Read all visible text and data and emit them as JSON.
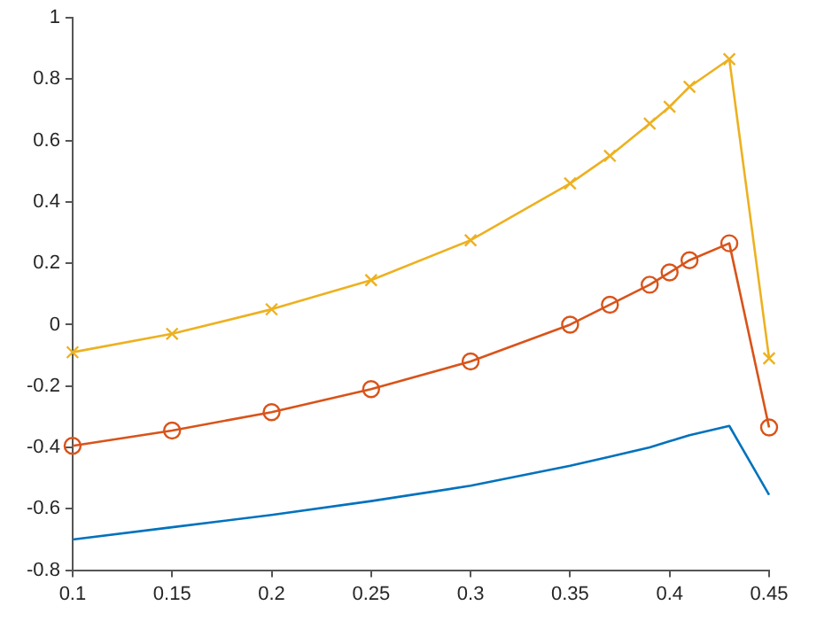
{
  "chart_data": {
    "type": "line",
    "x": [
      0.1,
      0.15,
      0.2,
      0.25,
      0.3,
      0.35,
      0.37,
      0.39,
      0.4,
      0.41,
      0.43,
      0.45
    ],
    "series": [
      {
        "color": "#0072bd",
        "marker": "none",
        "values": [
          -0.7,
          -0.66,
          -0.62,
          -0.575,
          -0.525,
          -0.46,
          -0.43,
          -0.4,
          -0.38,
          -0.36,
          -0.33,
          -0.555
        ]
      },
      {
        "color": "#d95319",
        "marker": "circle",
        "values": [
          -0.395,
          -0.345,
          -0.285,
          -0.21,
          -0.12,
          0.0,
          0.065,
          0.13,
          0.17,
          0.21,
          0.265,
          -0.335
        ]
      },
      {
        "color": "#edb120",
        "marker": "cross",
        "values": [
          -0.09,
          -0.03,
          0.05,
          0.145,
          0.275,
          0.46,
          0.55,
          0.655,
          0.71,
          0.775,
          0.865,
          -0.11
        ]
      }
    ],
    "xlim": [
      0.1,
      0.45
    ],
    "xticks": [
      0.1,
      0.15,
      0.2,
      0.25,
      0.3,
      0.35,
      0.4,
      0.45
    ],
    "ylim": [
      -0.8,
      1
    ],
    "yticks": [
      -0.8,
      -0.6,
      -0.4,
      -0.2,
      0,
      0.2,
      0.4,
      0.6,
      0.8,
      1
    ],
    "grid": false,
    "legend": false
  }
}
